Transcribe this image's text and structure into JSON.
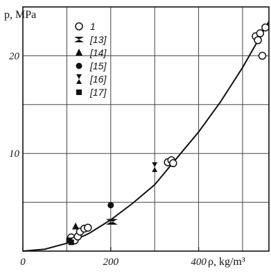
{
  "chart_data": {
    "type": "scatter",
    "title": "",
    "xlabel": "ρ, kg/m³",
    "ylabel": "p, MPa",
    "xlim": [
      0,
      560
    ],
    "ylim": [
      0,
      25
    ],
    "x_ticks": [
      0,
      200,
      400
    ],
    "x_tick_labels": [
      "0",
      "200",
      "400"
    ],
    "y_ticks": [
      10,
      20
    ],
    "y_tick_labels": [
      "10",
      "20"
    ],
    "grid": true,
    "legend_position": "top-left",
    "series": [
      {
        "name": "1",
        "marker": "circle-open",
        "points": [
          [
            110,
            1.4
          ],
          [
            118,
            1.1
          ],
          [
            125,
            1.5
          ],
          [
            130,
            2.0
          ],
          [
            140,
            2.3
          ],
          [
            148,
            2.4
          ],
          [
            330,
            9.1
          ],
          [
            338,
            9.3
          ],
          [
            342,
            9.0
          ],
          [
            530,
            22.0
          ],
          [
            535,
            21.6
          ],
          [
            540,
            22.3
          ],
          [
            545,
            20.0
          ],
          [
            552,
            22.9
          ]
        ]
      },
      {
        "name": "[13]",
        "marker": "bowtie",
        "points": [
          [
            200,
            3.0
          ],
          [
            205,
            3.0
          ]
        ]
      },
      {
        "name": "[14]",
        "marker": "triangle",
        "points": [
          [
            120,
            2.5
          ]
        ]
      },
      {
        "name": "[15]",
        "marker": "circle-filled",
        "points": [
          [
            200,
            4.7
          ]
        ]
      },
      {
        "name": "[16]",
        "marker": "hourglass",
        "points": [
          [
            300,
            8.6
          ]
        ]
      },
      {
        "name": "[17]",
        "marker": "square",
        "points": [
          [
            105,
            1.1
          ],
          [
            110,
            0.9
          ]
        ]
      }
    ],
    "fit_curve": {
      "x": [
        0,
        50,
        100,
        150,
        200,
        250,
        300,
        350,
        400,
        450,
        500,
        560
      ],
      "y": [
        0.0,
        0.2,
        0.8,
        1.8,
        3.2,
        4.9,
        6.8,
        9.5,
        12.2,
        15.3,
        18.8,
        23.5
      ]
    }
  }
}
